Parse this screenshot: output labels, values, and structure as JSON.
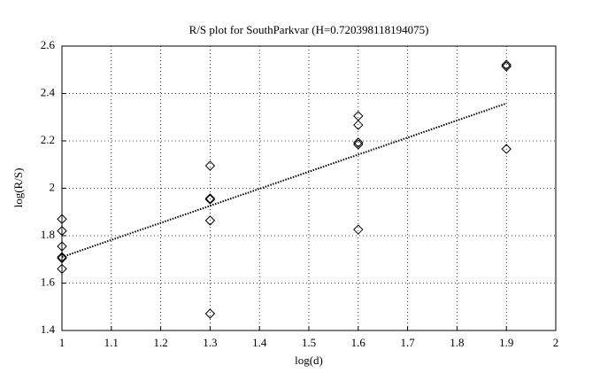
{
  "chart_data": {
    "type": "scatter",
    "title": "R/S plot for SouthParkvar (H=0.720398118194075)",
    "x_label": "log(d)",
    "y_label": "log(R/S)",
    "xlim": [
      1,
      2
    ],
    "ylim": [
      1.4,
      2.6
    ],
    "xticks": [
      1,
      1.1,
      1.2,
      1.3,
      1.4,
      1.5,
      1.6,
      1.7,
      1.8,
      1.9,
      2
    ],
    "yticks": [
      1.4,
      1.6,
      1.8,
      2,
      2.2,
      2.4,
      2.6
    ],
    "grid": true,
    "series": [
      {
        "marker": "diamond",
        "color": "#000000",
        "x": [
          1,
          1,
          1,
          1,
          1,
          1,
          1.3,
          1.3,
          1.3,
          1.3,
          1.3,
          1.6,
          1.6,
          1.6,
          1.6,
          1.6,
          1.9,
          1.9,
          1.9
        ],
        "values": [
          1.87,
          1.82,
          1.755,
          1.71,
          1.705,
          1.66,
          2.095,
          1.957,
          1.953,
          1.864,
          1.471,
          2.305,
          2.267,
          2.193,
          2.185,
          1.826,
          2.521,
          2.514,
          2.166
        ]
      },
      {
        "marker": "dotted-line",
        "color": "#000000",
        "x": [
          1,
          1.9
        ],
        "values": [
          1.71,
          2.358
        ]
      }
    ]
  }
}
